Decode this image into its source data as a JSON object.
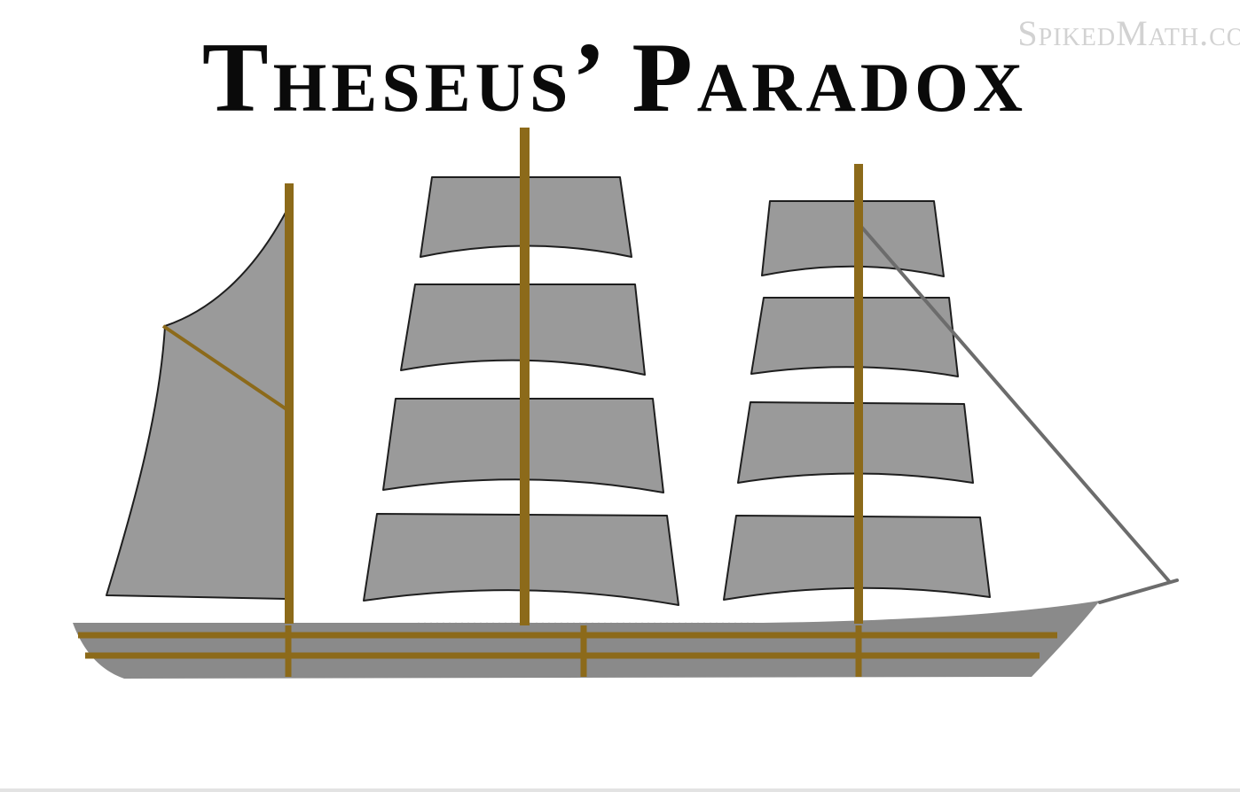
{
  "title": "Theseus’ Paradox",
  "watermark": "SpikedMath.co",
  "colors": {
    "sail_fill": "#9a9a9a",
    "sail_stroke": "#1e1e1e",
    "mast": "#8c6a1a",
    "hull": "#8a8a8a",
    "hull_stripe": "#8c6a1a",
    "rigging": "#6c6c6c",
    "background": "#ffffff"
  },
  "illustration": {
    "subject": "three-masted sailing ship",
    "masts": 3,
    "square_sails_per_mast": [
      0,
      4,
      4
    ],
    "gaff_sail": 1
  }
}
